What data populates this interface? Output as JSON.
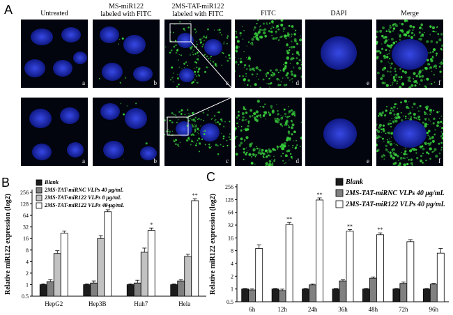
{
  "panel_A": {
    "letter": "A",
    "columns": [
      "Untreated",
      "MS-miR122\nlabeled with FITC",
      "2MS-TAT-miR122\nlabeled with FITC",
      "FITC",
      "DAPI",
      "Merge"
    ],
    "cell_labels": [
      "a",
      "b",
      "c",
      "d",
      "e",
      "f"
    ]
  },
  "panel_B": {
    "letter": "B",
    "chart_data": {
      "type": "bar",
      "categories": [
        "HepG2",
        "Hep3B",
        "Huh7",
        "Hela"
      ],
      "ylabel": "Relative miR122 expression (log2)",
      "yscale": "log2",
      "yticks": [
        "0.5",
        "1",
        "2",
        "4",
        "8",
        "16",
        "32",
        "64",
        "128",
        "256"
      ],
      "ylim": [
        0.5,
        256
      ],
      "legend_position": "top-left",
      "series": [
        {
          "name": "Blank",
          "values": [
            1.0,
            1.0,
            1.0,
            1.0
          ],
          "err": [
            0.05,
            0.05,
            0.05,
            0.05
          ],
          "color": "#1c1c1c",
          "sig": [
            "",
            "",
            "",
            ""
          ]
        },
        {
          "name": "2MS-TAT-miRNC VLPs 40 μg/mL",
          "values": [
            1.2,
            1.1,
            1.1,
            1.25
          ],
          "err": [
            0.15,
            0.15,
            0.2,
            0.1
          ],
          "color": "#808080",
          "sig": [
            "",
            "",
            "",
            ""
          ]
        },
        {
          "name": "2MS-TAT-miR122 VLPs 8 μg/mL",
          "values": [
            6.5,
            16,
            7,
            5.5
          ],
          "err": [
            1.2,
            3,
            2,
            0.7
          ],
          "color": "#c2c2c2",
          "sig": [
            "",
            "",
            "",
            ""
          ]
        },
        {
          "name": "2MS-TAT-miR122 VLPs 40 μg/mL",
          "values": [
            22,
            80,
            26,
            155
          ],
          "err": [
            3,
            10,
            4,
            20
          ],
          "color": "#ffffff",
          "sig": [
            "",
            "**",
            "*",
            "**"
          ]
        }
      ]
    }
  },
  "panel_C": {
    "letter": "C",
    "chart_data": {
      "type": "bar",
      "categories": [
        "6h",
        "12h",
        "24h",
        "36h",
        "48h",
        "72h",
        "96h"
      ],
      "ylabel": "Relative miR122 expression (log2)",
      "yscale": "log2",
      "yticks": [
        "0.5",
        "1",
        "2",
        "4",
        "8",
        "16",
        "32",
        "64",
        "128",
        "256"
      ],
      "ylim": [
        0.5,
        256
      ],
      "legend_position": "top-left",
      "series": [
        {
          "name": "Blank",
          "values": [
            1.0,
            1.0,
            1.0,
            1.0,
            1.0,
            1.0,
            1.0
          ],
          "err": [
            0.03,
            0.03,
            0.03,
            0.03,
            0.03,
            0.03,
            0.03
          ],
          "color": "#1c1c1c",
          "sig": [
            "",
            "",
            "",
            "",
            "",
            "",
            ""
          ]
        },
        {
          "name": "2MS-TAT-miRNC VLPs 40 μg/mL",
          "values": [
            0.95,
            0.92,
            1.25,
            1.55,
            1.8,
            1.35,
            1.3
          ],
          "err": [
            0.05,
            0.07,
            0.06,
            0.1,
            0.12,
            0.1,
            0.05
          ],
          "color": "#808080",
          "sig": [
            "",
            "",
            "",
            "",
            "",
            "",
            ""
          ]
        },
        {
          "name": "2MS-TAT-miR122 VLPs 40 μg/mL",
          "values": [
            9,
            33,
            125,
            23,
            19,
            13,
            7
          ],
          "err": [
            2,
            4,
            15,
            2,
            2,
            1.5,
            2
          ],
          "color": "#ffffff",
          "sig": [
            "",
            "**",
            "**",
            "**",
            "**",
            "",
            ""
          ]
        }
      ]
    }
  },
  "colors": {
    "nucleus": "#1e2ccc",
    "fitc": "#39d23c",
    "background": "#02040e"
  }
}
